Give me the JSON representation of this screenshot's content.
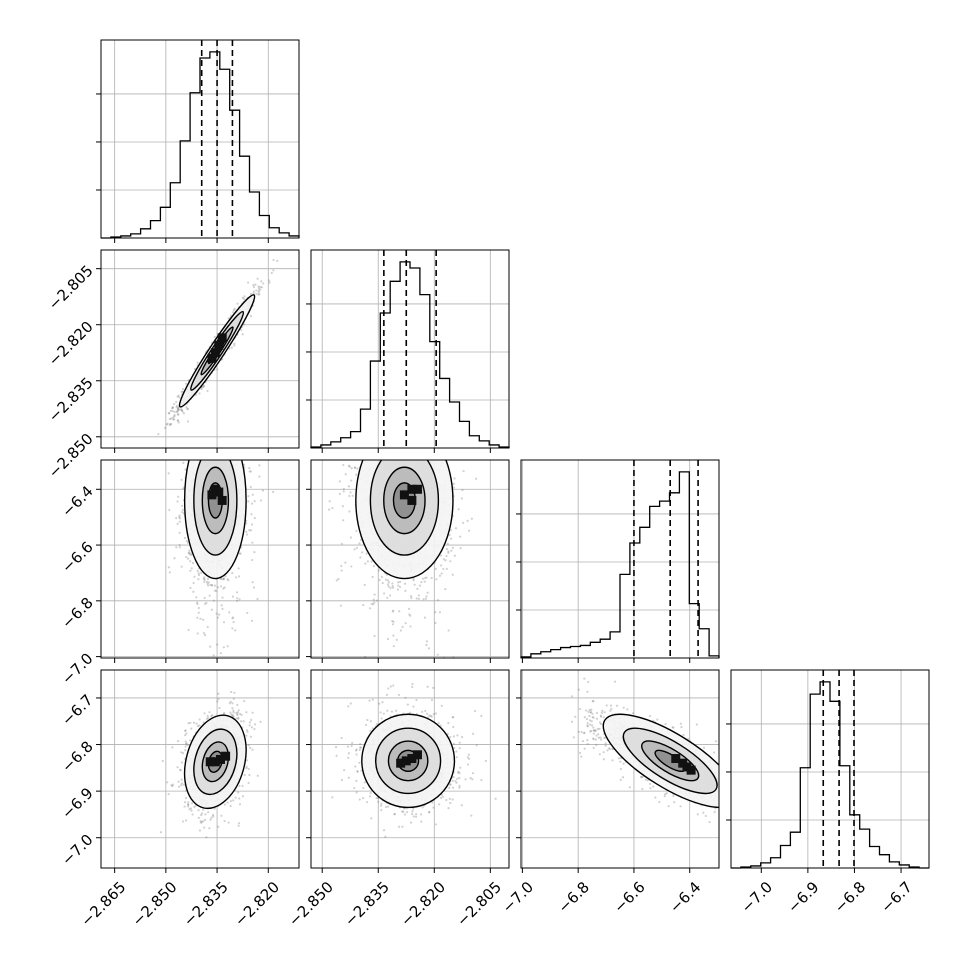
{
  "chart_data": {
    "type": "corner",
    "n_params": 4,
    "colors": {
      "line": "#000000",
      "grid": "#b0b0b0",
      "background": "#ffffff"
    },
    "grid": true,
    "axes_ranges": [
      [
        -2.869,
        -2.811
      ],
      [
        -2.853,
        -2.8
      ],
      [
        -7.005,
        -6.295
      ],
      [
        -7.065,
        -6.64
      ]
    ],
    "ticks": [
      {
        "values": [
          -2.865,
          -2.85,
          -2.835,
          -2.82
        ],
        "labels": [
          "−2.865",
          "−2.850",
          "−2.835",
          "−2.820"
        ]
      },
      {
        "values": [
          -2.85,
          -2.835,
          -2.82,
          -2.805
        ],
        "labels": [
          "−2.850",
          "−2.835",
          "−2.820",
          "−2.805"
        ]
      },
      {
        "values": [
          -7.0,
          -6.8,
          -6.6,
          -6.4
        ],
        "labels": [
          "−7.0",
          "−6.8",
          "−6.6",
          "−6.4"
        ]
      },
      {
        "values": [
          -7.0,
          -6.9,
          -6.8,
          -6.7
        ],
        "labels": [
          "−7.0",
          "−6.9",
          "−6.8",
          "−6.7"
        ]
      }
    ],
    "histograms": [
      {
        "param": 0,
        "quantiles": [
          -2.8395,
          -2.835,
          -2.8305
        ],
        "counts": [
          0,
          1,
          2,
          4,
          9,
          17,
          30,
          54,
          95,
          142,
          176,
          182,
          165,
          125,
          80,
          45,
          22,
          10,
          5,
          2
        ]
      },
      {
        "param": 1,
        "quantiles": [
          -2.8335,
          -2.8275,
          -2.8195
        ],
        "counts": [
          1,
          3,
          6,
          10,
          16,
          38,
          85,
          132,
          163,
          182,
          176,
          150,
          104,
          68,
          45,
          26,
          12,
          7,
          3,
          1
        ]
      },
      {
        "param": 2,
        "quantiles": [
          -6.6,
          -6.47,
          -6.37
        ],
        "counts": [
          1,
          4,
          6,
          8,
          10,
          11,
          12,
          15,
          18,
          25,
          80,
          110,
          125,
          145,
          150,
          158,
          178,
          52,
          28,
          2
        ]
      },
      {
        "param": 3,
        "quantiles": [
          -6.867,
          -6.833,
          -6.801
        ],
        "counts": [
          0,
          1,
          2,
          5,
          10,
          22,
          35,
          98,
          170,
          182,
          163,
          100,
          52,
          38,
          21,
          13,
          6,
          3,
          1,
          0
        ]
      }
    ],
    "joint": [
      {
        "row": 1,
        "col": 0,
        "center": [
          -2.835,
          -2.827
        ],
        "sd": [
          0.0055,
          0.0075
        ],
        "corr": 0.97,
        "dense": [
          [
            -2.8365,
            -2.829
          ],
          [
            -2.8345,
            -2.8255
          ],
          [
            -2.8335,
            -2.8235
          ],
          [
            -2.8355,
            -2.8275
          ]
        ]
      },
      {
        "row": 2,
        "col": 0,
        "center": [
          -2.8355,
          -6.44
        ],
        "sd": [
          0.0045,
          0.14
        ],
        "corr": 0.0,
        "dense": [
          [
            -2.8355,
            -6.4
          ],
          [
            -2.8345,
            -6.41
          ],
          [
            -2.8365,
            -6.42
          ],
          [
            -2.8335,
            -6.44
          ]
        ]
      },
      {
        "row": 2,
        "col": 1,
        "center": [
          -2.828,
          -6.44
        ],
        "sd": [
          0.0065,
          0.14
        ],
        "corr": 0.0,
        "dense": [
          [
            -2.826,
            -6.4
          ],
          [
            -2.8245,
            -6.4
          ],
          [
            -2.828,
            -6.42
          ],
          [
            -2.826,
            -6.44
          ]
        ]
      },
      {
        "row": 3,
        "col": 0,
        "center": [
          -2.8355,
          -6.837
        ],
        "sd": [
          0.0045,
          0.05
        ],
        "corr": 0.25,
        "dense": [
          [
            -2.837,
            -6.837
          ],
          [
            -2.8355,
            -6.837
          ],
          [
            -2.834,
            -6.832
          ],
          [
            -2.8325,
            -6.825
          ]
        ]
      },
      {
        "row": 3,
        "col": 1,
        "center": [
          -2.827,
          -6.835
        ],
        "sd": [
          0.0062,
          0.05
        ],
        "corr": 0.0,
        "dense": [
          [
            -2.8275,
            -6.835
          ],
          [
            -2.826,
            -6.83
          ],
          [
            -2.8245,
            -6.822
          ],
          [
            -2.829,
            -6.84
          ]
        ]
      },
      {
        "row": 3,
        "col": 2,
        "center": [
          -6.47,
          -6.835
        ],
        "sd": [
          0.12,
          0.05
        ],
        "corr": -0.75,
        "dense": [
          [
            -6.41,
            -6.848
          ],
          [
            -6.395,
            -6.855
          ],
          [
            -6.425,
            -6.84
          ],
          [
            -6.45,
            -6.83
          ]
        ]
      }
    ]
  }
}
